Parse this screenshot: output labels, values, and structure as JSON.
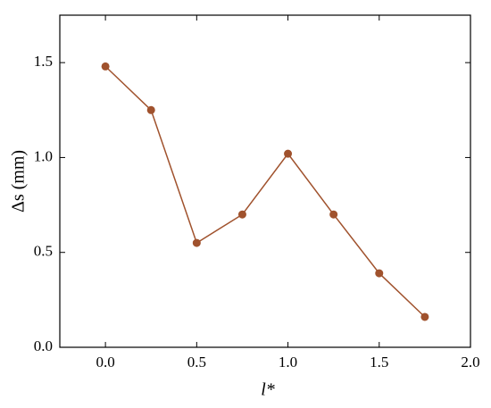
{
  "chart_data": {
    "type": "line",
    "x_label": "l*",
    "y_label": "Δs (mm)",
    "x": [
      0,
      0.25,
      0.5,
      0.75,
      1.0,
      1.25,
      1.5,
      1.75
    ],
    "series": [
      {
        "color": "#a0522d",
        "values": [
          1.48,
          1.25,
          0.55,
          0.7,
          1.02,
          0.7,
          0.39,
          0.16
        ]
      }
    ],
    "xlim": [
      -0.25,
      2.0
    ],
    "xticks": [
      {
        "value": 0,
        "label": "0.0"
      },
      {
        "value": 0.5,
        "label": "0.5"
      },
      {
        "value": 1,
        "label": "1.0"
      },
      {
        "value": 1.5,
        "label": "1.5"
      },
      {
        "value": 2,
        "label": "2.0"
      }
    ],
    "ylim": [
      0,
      1.75
    ],
    "yticks": [
      {
        "value": 0,
        "label": "0.0"
      },
      {
        "value": 0.5,
        "label": "0.5"
      },
      {
        "value": 1,
        "label": "1.0"
      },
      {
        "value": 1.5,
        "label": "1.5"
      }
    ]
  }
}
